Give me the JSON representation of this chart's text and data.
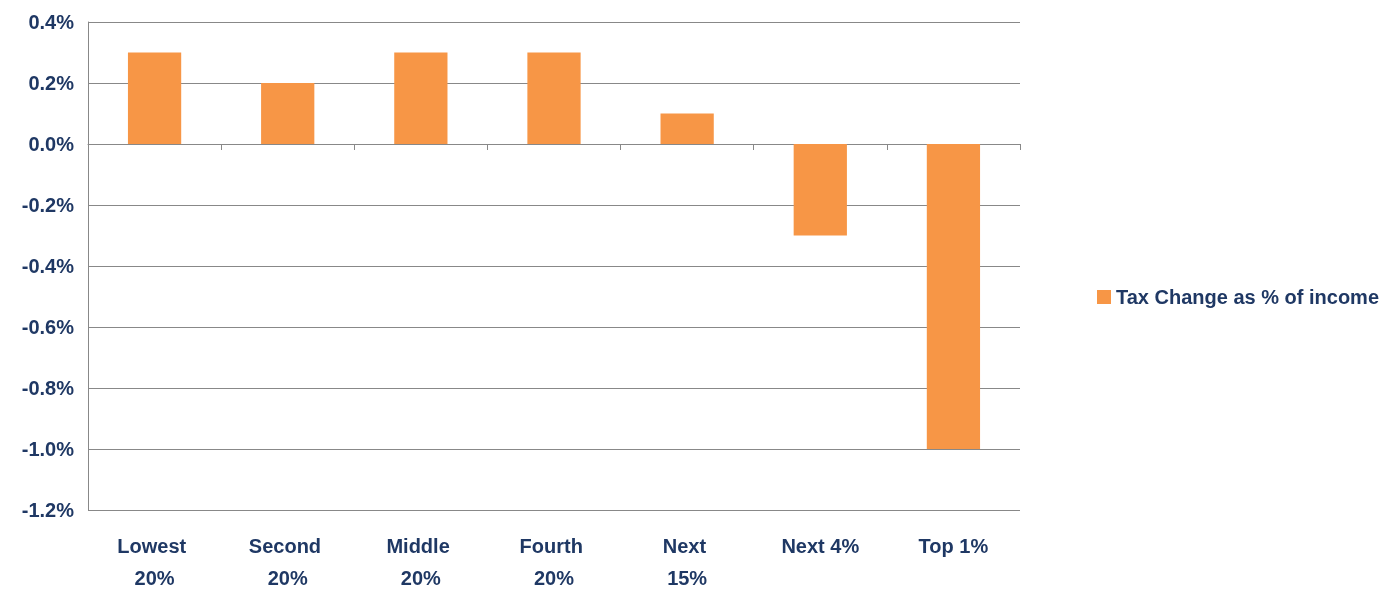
{
  "chart_data": {
    "type": "bar",
    "categories": [
      "Lowest 20%",
      "Second 20%",
      "Middle 20%",
      "Fourth 20%",
      "Next 15%",
      "Next 4%",
      "Top 1%"
    ],
    "series": [
      {
        "name": "Tax Change as % of income",
        "color": "#f79646",
        "values": [
          0.3,
          0.2,
          0.3,
          0.3,
          0.1,
          -0.3,
          -1.0
        ]
      }
    ],
    "ylim": [
      -1.2,
      0.4
    ],
    "yticks": [
      {
        "value": -1.2,
        "label": "-1.2%"
      },
      {
        "value": -1.0,
        "label": "-1.0%"
      },
      {
        "value": -0.8,
        "label": "-0.8%"
      },
      {
        "value": -0.6,
        "label": "-0.6%"
      },
      {
        "value": -0.4,
        "label": "-0.4%"
      },
      {
        "value": -0.2,
        "label": "-0.2%"
      },
      {
        "value": 0,
        "label": "0.0%"
      },
      {
        "value": 0.2,
        "label": "0.2%"
      },
      {
        "value": 0.4,
        "label": "0.4%"
      }
    ],
    "grid": "y",
    "legend": "right"
  }
}
